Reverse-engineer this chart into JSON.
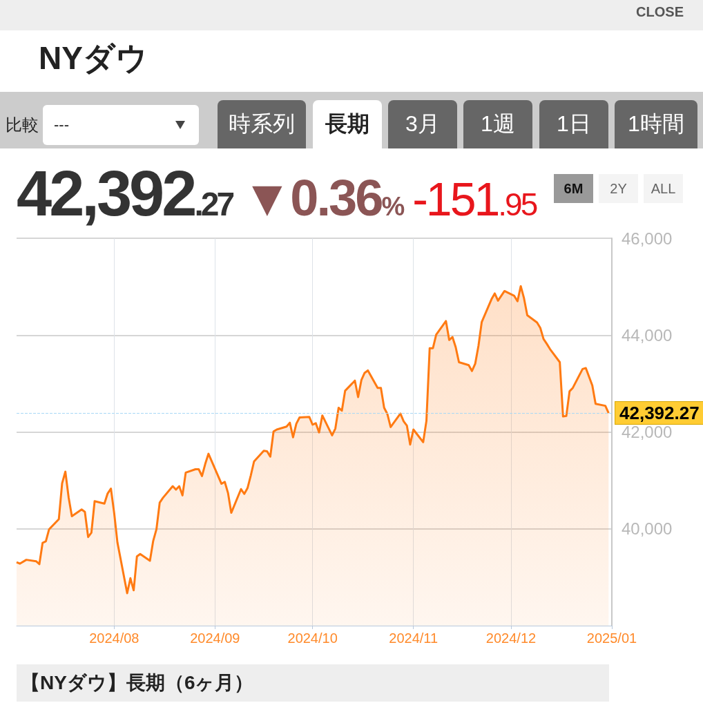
{
  "chart_data": {
    "type": "area",
    "title": "NYダウ",
    "annotations": [
      "CLOSE",
      "比較",
      "---",
      "時系列",
      "長期",
      "3月",
      "1週",
      "1日",
      "1時間",
      "42,392.27",
      "▼0.36%",
      "-151.95",
      "6M",
      "2Y",
      "ALL",
      "【NYダウ】長期（6ヶ月）"
    ],
    "x": [
      "2024-07-02",
      "2024-07-03",
      "2024-07-05",
      "2024-07-08",
      "2024-07-09",
      "2024-07-10",
      "2024-07-11",
      "2024-07-12",
      "2024-07-15",
      "2024-07-16",
      "2024-07-17",
      "2024-07-18",
      "2024-07-19",
      "2024-07-22",
      "2024-07-23",
      "2024-07-24",
      "2024-07-25",
      "2024-07-26",
      "2024-07-29",
      "2024-07-30",
      "2024-07-31",
      "2024-08-01",
      "2024-08-02",
      "2024-08-05",
      "2024-08-06",
      "2024-08-07",
      "2024-08-08",
      "2024-08-09",
      "2024-08-12",
      "2024-08-13",
      "2024-08-14",
      "2024-08-15",
      "2024-08-16",
      "2024-08-19",
      "2024-08-20",
      "2024-08-21",
      "2024-08-22",
      "2024-08-23",
      "2024-08-26",
      "2024-08-27",
      "2024-08-28",
      "2024-08-29",
      "2024-08-30",
      "2024-09-03",
      "2024-09-04",
      "2024-09-05",
      "2024-09-06",
      "2024-09-09",
      "2024-09-10",
      "2024-09-11",
      "2024-09-12",
      "2024-09-13",
      "2024-09-16",
      "2024-09-17",
      "2024-09-18",
      "2024-09-19",
      "2024-09-20",
      "2024-09-23",
      "2024-09-24",
      "2024-09-25",
      "2024-09-26",
      "2024-09-27",
      "2024-09-30",
      "2024-10-01",
      "2024-10-02",
      "2024-10-03",
      "2024-10-04",
      "2024-10-07",
      "2024-10-08",
      "2024-10-09",
      "2024-10-10",
      "2024-10-11",
      "2024-10-14",
      "2024-10-15",
      "2024-10-16",
      "2024-10-17",
      "2024-10-18",
      "2024-10-21",
      "2024-10-22",
      "2024-10-23",
      "2024-10-24",
      "2024-10-25",
      "2024-10-28",
      "2024-10-29",
      "2024-10-30",
      "2024-10-31",
      "2024-11-01",
      "2024-11-04",
      "2024-11-05",
      "2024-11-06",
      "2024-11-07",
      "2024-11-08",
      "2024-11-11",
      "2024-11-12",
      "2024-11-13",
      "2024-11-14",
      "2024-11-15",
      "2024-11-18",
      "2024-11-19",
      "2024-11-20",
      "2024-11-21",
      "2024-11-22",
      "2024-11-25",
      "2024-11-26",
      "2024-11-27",
      "2024-11-29",
      "2024-12-02",
      "2024-12-03",
      "2024-12-04",
      "2024-12-05",
      "2024-12-06",
      "2024-12-09",
      "2024-12-10",
      "2024-12-11",
      "2024-12-12",
      "2024-12-13",
      "2024-12-16",
      "2024-12-17",
      "2024-12-18",
      "2024-12-19",
      "2024-12-20",
      "2024-12-23",
      "2024-12-24",
      "2024-12-26",
      "2024-12-27",
      "2024-12-30",
      "2024-12-31"
    ],
    "series": [
      {
        "color": "#ff7a12",
        "values": [
          39310,
          39280,
          39360,
          39330,
          39270,
          39710,
          39740,
          39990,
          40200,
          40940,
          41180,
          40650,
          40260,
          40400,
          40350,
          39830,
          39920,
          40570,
          40520,
          40730,
          40830,
          40330,
          39720,
          38670,
          38980,
          38730,
          39430,
          39480,
          39340,
          39750,
          39990,
          40540,
          40640,
          40880,
          40810,
          40880,
          40690,
          41160,
          41230,
          41230,
          41090,
          41340,
          41550,
          40930,
          40970,
          40740,
          40330,
          40820,
          40720,
          40840,
          41100,
          41390,
          41610,
          41600,
          41490,
          42010,
          42050,
          42110,
          42190,
          41890,
          42170,
          42300,
          42310,
          42150,
          42180,
          41990,
          42340,
          41930,
          42070,
          42500,
          42440,
          42850,
          43060,
          42720,
          43070,
          43220,
          43270,
          42910,
          42910,
          42500,
          42370,
          42100,
          42380,
          42220,
          42130,
          41740,
          42050,
          41790,
          42230,
          43730,
          43730,
          44010,
          44290,
          43900,
          43960,
          43750,
          43440,
          43380,
          43260,
          43410,
          43780,
          44270,
          44740,
          44860,
          44710,
          44910,
          44810,
          44700,
          45010,
          44760,
          44410,
          44260,
          44150,
          43920,
          43820,
          43710,
          43440,
          42320,
          42330,
          42840,
          42910,
          43300,
          43320,
          42960,
          42580,
          42540,
          42390
        ]
      }
    ],
    "xlim": [
      "2024-07-02",
      "2025-01-01"
    ],
    "xticks": [
      {
        "value": "2024-08-01",
        "label": "2024/08"
      },
      {
        "value": "2024-09-01",
        "label": "2024/09"
      },
      {
        "value": "2024-10-01",
        "label": "2024/10"
      },
      {
        "value": "2024-11-01",
        "label": "2024/11"
      },
      {
        "value": "2024-12-01",
        "label": "2024/12"
      },
      {
        "value": "2025-01-01",
        "label": "2025/01"
      }
    ],
    "ylim": [
      38000,
      46000
    ],
    "yticks": [
      {
        "value": 40000,
        "label": "40,000"
      },
      {
        "value": 42000,
        "label": "42,000"
      },
      {
        "value": 44000,
        "label": "44,000"
      },
      {
        "value": 46000,
        "label": "46,000"
      }
    ],
    "ref_lines": [
      {
        "axis": "y",
        "value": 42392.27,
        "label": "42,392.27",
        "color": "#a8d8f5",
        "line_style": "dashed"
      }
    ],
    "grid": true,
    "marker": "none",
    "line_style": "solid"
  }
}
